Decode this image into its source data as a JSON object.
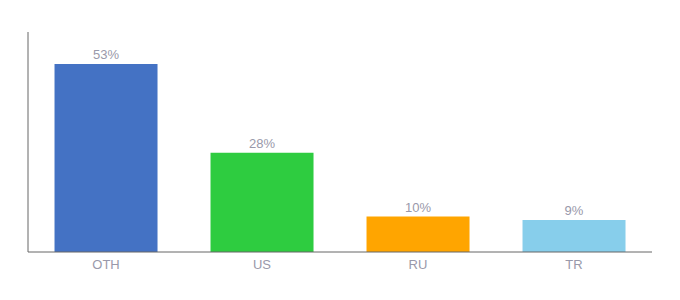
{
  "chart_data": {
    "type": "bar",
    "categories": [
      "OTH",
      "US",
      "RU",
      "TR"
    ],
    "values": [
      53,
      28,
      10,
      9
    ],
    "value_labels": [
      "53%",
      "28%",
      "10%",
      "9%"
    ],
    "colors": [
      "#4472C4",
      "#2ECC40",
      "#FFA500",
      "#87CEEB"
    ],
    "ylim": [
      0,
      62
    ],
    "data_labels": true,
    "tick_labels": "x",
    "grid": false
  }
}
